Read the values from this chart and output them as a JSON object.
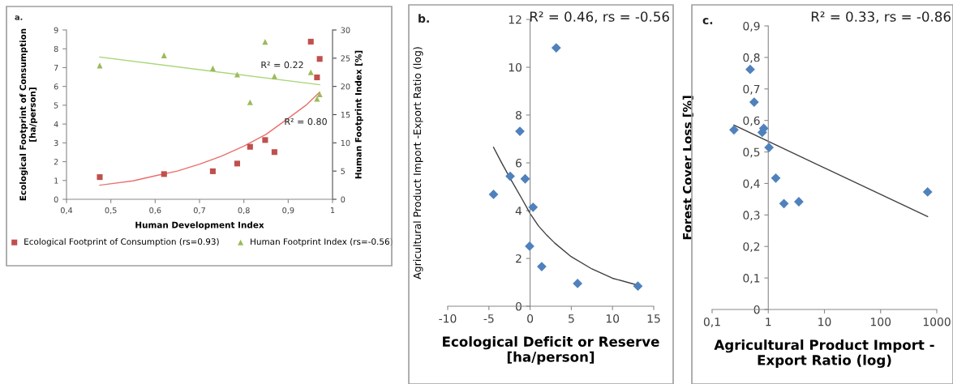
{
  "chart_data": [
    {
      "type": "scatter",
      "xlabel": "Human Development Index",
      "ylabel": "Ecological Footprint of Consumption\n[ha/person]",
      "y2label": "Human Footprint Index [%]",
      "xlim": [
        0.4,
        1
      ],
      "xticks": [
        {
          "value": 0.4,
          "label": "0,4"
        },
        {
          "value": 0.5,
          "label": "0,5"
        },
        {
          "value": 0.6,
          "label": "0,6"
        },
        {
          "value": 0.7,
          "label": "0,7"
        },
        {
          "value": 0.8,
          "label": "0,8"
        },
        {
          "value": 0.9,
          "label": "0,9"
        },
        1
      ],
      "ylim": [
        0,
        9
      ],
      "yticks": [
        0,
        1,
        2,
        3,
        4,
        5,
        6,
        7,
        8,
        9
      ],
      "y2lim": [
        0,
        30
      ],
      "y2ticks": [
        0,
        5,
        10,
        15,
        20,
        25,
        30
      ],
      "legend": "bottom",
      "grid": false,
      "annotations": [
        "a.",
        "R² = 0.22",
        "R² = 0.80"
      ],
      "series": [
        {
          "name": "Ecological Footprint of Consumption (rs=0.93)",
          "marker": "square",
          "color": "#c0504d",
          "x": [
            0.475,
            0.62,
            0.73,
            0.785,
            0.814,
            0.848,
            0.869,
            0.951,
            0.965,
            0.971
          ],
          "values": [
            1.18,
            1.34,
            1.49,
            1.9,
            2.79,
            3.15,
            2.51,
            8.38,
            6.48,
            7.46
          ]
        },
        {
          "name": "Human Footprint Index (rs=-0.56)",
          "marker": "triangle",
          "axis": "y2",
          "color": "#9bbb59",
          "x": [
            0.475,
            0.62,
            0.73,
            0.785,
            0.814,
            0.848,
            0.869,
            0.951,
            0.965,
            0.971
          ],
          "values": [
            23.7,
            25.5,
            23.2,
            22.1,
            17.2,
            27.9,
            21.8,
            22.5,
            17.8,
            18.6
          ]
        },
        {
          "type": "line",
          "color": "#e8706c",
          "x": [
            0.475,
            0.55,
            0.6,
            0.65,
            0.7,
            0.75,
            0.8,
            0.85,
            0.9,
            0.94,
            0.971
          ],
          "values": [
            0.75,
            0.98,
            1.25,
            1.5,
            1.87,
            2.3,
            2.83,
            3.45,
            4.3,
            5.0,
            5.7
          ]
        },
        {
          "type": "line",
          "axis": "y2",
          "color": "#a9d67a",
          "x": [
            0.475,
            0.971
          ],
          "values": [
            25.2,
            20.3
          ]
        }
      ]
    },
    {
      "type": "scatter",
      "xlabel": "Ecological Deficit or Reserve\n[ha/person]",
      "ylabel": "Agricultural Product Import -Export Ratio (log)",
      "xlim": [
        -10,
        15
      ],
      "xticks": [
        -10,
        -5,
        0,
        5,
        10,
        15
      ],
      "ylim": [
        0,
        12
      ],
      "yticks": [
        0,
        2,
        4,
        6,
        8,
        10,
        12
      ],
      "grid": false,
      "annotations": [
        "b.",
        "R² = 0.46, rs = -0.56"
      ],
      "series": [
        {
          "marker": "diamond",
          "color": "#4f81bd",
          "x": [
            3.17,
            -1.24,
            -4.44,
            -2.42,
            -0.6,
            0.36,
            -0.06,
            1.41,
            5.76,
            13.08
          ],
          "values": [
            10.81,
            7.32,
            4.68,
            5.44,
            5.33,
            4.14,
            2.51,
            1.66,
            0.95,
            0.84
          ]
        },
        {
          "type": "line",
          "color": "#404040",
          "x": [
            -4.44,
            -3.5,
            -2.42,
            -1,
            0,
            1,
            2,
            3,
            5,
            7.5,
            10,
            13.08
          ],
          "values": [
            6.65,
            6.03,
            5.35,
            4.5,
            3.88,
            3.37,
            2.98,
            2.64,
            2.07,
            1.56,
            1.17,
            0.88
          ]
        }
      ]
    },
    {
      "type": "scatter",
      "xlabel": "Agricultural Product Import -\nExport Ratio (log)",
      "ylabel": "Forest Cover Loss [%]",
      "log": "x",
      "xlim": [
        0.1,
        1000
      ],
      "xticks": [
        {
          "value": 0.1,
          "label": "0,1"
        },
        1,
        10,
        100,
        1000
      ],
      "ylim": [
        0,
        0.9
      ],
      "yticks": [
        0,
        {
          "value": 0.1,
          "label": "0,1"
        },
        {
          "value": 0.2,
          "label": "0,2"
        },
        {
          "value": 0.3,
          "label": "0,3"
        },
        {
          "value": 0.4,
          "label": "0,4"
        },
        {
          "value": 0.5,
          "label": "0,5"
        },
        {
          "value": 0.6,
          "label": "0,6"
        },
        {
          "value": 0.7,
          "label": "0,7"
        },
        {
          "value": 0.8,
          "label": "0,8"
        },
        {
          "value": 0.9,
          "label": "0,9"
        }
      ],
      "grid": false,
      "annotations": [
        "c.",
        "R² = 0.33, rs = -0.86"
      ],
      "series": [
        {
          "marker": "diamond",
          "color": "#4f81bd",
          "x": [
            0.245,
            0.476,
            0.56,
            0.78,
            0.83,
            1.03,
            1.36,
            1.9,
            3.5,
            687
          ],
          "values": [
            0.57,
            0.762,
            0.658,
            0.562,
            0.575,
            0.514,
            0.417,
            0.336,
            0.342,
            0.373
          ]
        },
        {
          "type": "line",
          "color": "#404040",
          "x": [
            0.245,
            687
          ],
          "values": [
            0.585,
            0.295
          ]
        }
      ]
    }
  ]
}
